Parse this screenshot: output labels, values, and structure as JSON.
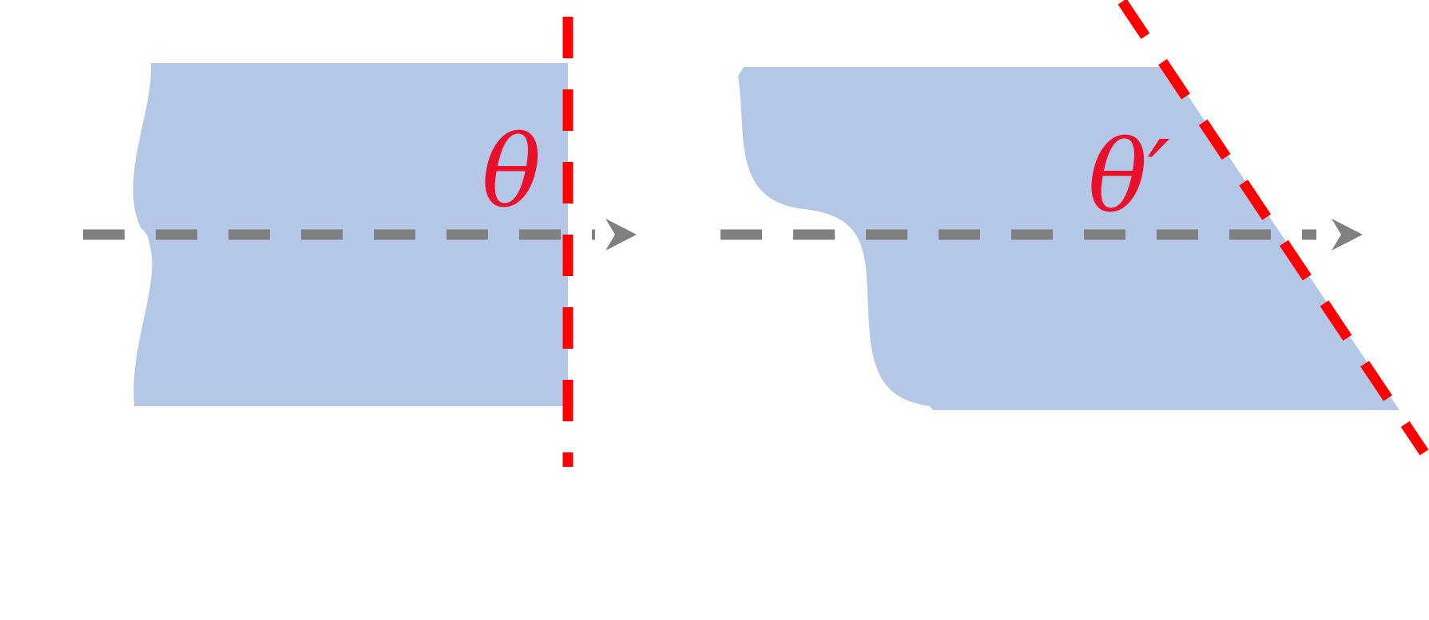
{
  "colors": {
    "background": "#ffffff",
    "region_fill": "#b4c7e7",
    "boundary_line": "#ff0000",
    "axis_arrow": "#808080",
    "label": "#e8102a"
  },
  "panels": [
    {
      "id": "left",
      "label": "θ",
      "boundary": "vertical"
    },
    {
      "id": "right",
      "label": "θ′",
      "boundary": "slanted"
    }
  ]
}
